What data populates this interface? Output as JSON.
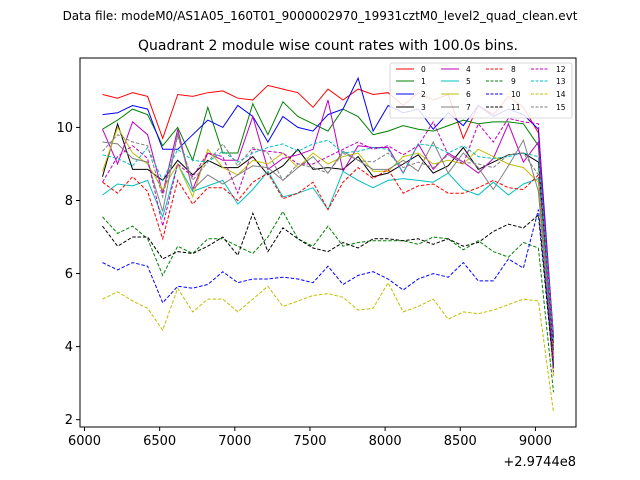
{
  "header": {
    "suptitle": "Data file: modeM0/AS1A05_160T01_9000002970_19931cztM0_level2_quad_clean.evt"
  },
  "chart_data": {
    "type": "line",
    "title": "Quadrant 2 module wise count rates with 100.0s bins.",
    "xlabel": "",
    "ylabel": "",
    "x_offset_label": "+2.9744e8",
    "xlim": [
      5970,
      9270
    ],
    "ylim": [
      1.8,
      11.9
    ],
    "xticks": [
      6000,
      6500,
      7000,
      7500,
      8000,
      8500,
      9000
    ],
    "yticks": [
      2,
      4,
      6,
      8,
      10
    ],
    "legend_position": "upper right",
    "x": [
      6120,
      6220,
      6320,
      6420,
      6520,
      6620,
      6720,
      6820,
      6920,
      7020,
      7120,
      7220,
      7320,
      7420,
      7520,
      7620,
      7720,
      7820,
      7920,
      8020,
      8120,
      8220,
      8320,
      8420,
      8520,
      8620,
      8720,
      8820,
      8920,
      9020,
      9120
    ],
    "series": [
      {
        "name": "0",
        "color": "#ff0000",
        "dash": "solid",
        "values": [
          10.9,
          10.8,
          10.95,
          10.85,
          9.7,
          10.9,
          10.85,
          10.95,
          11.0,
          10.8,
          10.75,
          11.15,
          11.05,
          10.95,
          10.55,
          11.05,
          10.75,
          11.05,
          10.9,
          10.95,
          10.6,
          10.95,
          10.75,
          10.9,
          9.7,
          10.6,
          10.35,
          10.85,
          10.55,
          9.85,
          4.1
        ]
      },
      {
        "name": "1",
        "color": "#008000",
        "dash": "solid",
        "values": [
          9.95,
          10.2,
          10.5,
          10.35,
          9.5,
          10.0,
          9.1,
          10.55,
          9.3,
          9.3,
          10.65,
          9.8,
          10.7,
          10.3,
          10.1,
          9.9,
          10.5,
          10.3,
          9.8,
          9.9,
          10.05,
          9.95,
          9.9,
          10.05,
          10.2,
          10.1,
          10.15,
          10.15,
          10.1,
          9.5,
          3.6
        ]
      },
      {
        "name": "2",
        "color": "#0000ff",
        "dash": "solid",
        "values": [
          10.35,
          10.4,
          10.6,
          10.5,
          9.4,
          9.4,
          9.8,
          10.2,
          10.0,
          10.6,
          10.3,
          9.6,
          10.3,
          10.0,
          9.9,
          10.35,
          10.5,
          11.35,
          9.9,
          10.6,
          10.4,
          10.5,
          9.95,
          10.4,
          10.05,
          10.6,
          10.3,
          10.5,
          10.35,
          9.95,
          4.25
        ]
      },
      {
        "name": "3",
        "color": "#000000",
        "dash": "solid",
        "values": [
          8.65,
          10.1,
          8.85,
          8.85,
          8.55,
          9.1,
          8.7,
          9.1,
          8.9,
          8.9,
          9.2,
          8.7,
          8.95,
          9.4,
          8.85,
          8.9,
          8.85,
          9.2,
          8.65,
          8.75,
          9.0,
          9.25,
          8.75,
          8.95,
          9.45,
          8.85,
          9.05,
          9.25,
          9.3,
          9.05,
          3.9
        ]
      },
      {
        "name": "4",
        "color": "#bf00bf",
        "dash": "solid",
        "values": [
          9.95,
          9.0,
          10.15,
          9.8,
          8.2,
          9.95,
          8.3,
          9.3,
          9.1,
          9.1,
          10.3,
          8.85,
          9.15,
          9.25,
          9.4,
          10.75,
          8.8,
          9.5,
          9.45,
          9.45,
          8.75,
          9.55,
          8.85,
          9.3,
          9.05,
          8.75,
          9.15,
          10.1,
          9.05,
          9.6,
          4.3
        ]
      },
      {
        "name": "5",
        "color": "#00bfbf",
        "dash": "solid",
        "values": [
          8.15,
          8.45,
          8.4,
          8.55,
          7.55,
          9.0,
          8.25,
          8.4,
          8.55,
          7.9,
          8.3,
          8.8,
          8.1,
          8.2,
          8.35,
          7.75,
          8.8,
          8.55,
          8.35,
          8.55,
          8.6,
          8.55,
          8.5,
          8.75,
          8.3,
          8.15,
          8.5,
          8.15,
          8.45,
          8.6,
          3.5
        ]
      },
      {
        "name": "6",
        "color": "#bfbf00",
        "dash": "solid",
        "values": [
          8.8,
          10.0,
          9.3,
          9.0,
          8.3,
          9.0,
          8.1,
          9.4,
          8.9,
          8.7,
          9.1,
          9.0,
          9.3,
          8.9,
          9.3,
          9.0,
          9.2,
          9.3,
          8.8,
          8.8,
          9.2,
          9.3,
          9.0,
          9.1,
          9.0,
          9.4,
          9.2,
          9.0,
          8.9,
          8.5,
          3.2
        ]
      },
      {
        "name": "7",
        "color": "#808080",
        "dash": "solid",
        "values": [
          9.6,
          9.55,
          9.15,
          9.05,
          7.7,
          9.85,
          8.3,
          8.7,
          8.45,
          8.7,
          8.95,
          8.9,
          8.55,
          8.9,
          9.2,
          8.75,
          9.35,
          9.1,
          8.85,
          8.85,
          9.1,
          8.8,
          9.6,
          8.75,
          9.3,
          8.9,
          8.3,
          8.95,
          9.65,
          8.25,
          3.4
        ]
      },
      {
        "name": "8",
        "color": "#ff0000",
        "dash": "dashed",
        "values": [
          8.5,
          8.2,
          8.65,
          8.25,
          6.95,
          8.55,
          7.9,
          8.35,
          8.35,
          8.0,
          8.5,
          8.75,
          8.05,
          8.2,
          8.5,
          7.75,
          8.5,
          8.9,
          8.6,
          8.85,
          8.2,
          8.4,
          8.45,
          8.2,
          8.2,
          8.35,
          8.55,
          8.35,
          8.3,
          8.7,
          3.7
        ]
      },
      {
        "name": "9",
        "color": "#008000",
        "dash": "dashed",
        "values": [
          7.55,
          7.1,
          7.3,
          6.95,
          5.95,
          6.75,
          6.55,
          6.95,
          6.95,
          6.75,
          6.55,
          7.0,
          7.7,
          6.95,
          6.75,
          7.3,
          6.75,
          6.85,
          6.9,
          6.9,
          6.9,
          6.8,
          7.0,
          6.95,
          6.65,
          6.9,
          6.6,
          6.45,
          6.85,
          6.7,
          2.75
        ]
      },
      {
        "name": "10",
        "color": "#0000ff",
        "dash": "dashed",
        "values": [
          6.3,
          6.1,
          6.3,
          6.2,
          5.2,
          5.65,
          5.6,
          5.7,
          6.05,
          5.75,
          5.85,
          5.85,
          5.9,
          5.85,
          5.75,
          6.2,
          5.7,
          5.95,
          6.05,
          5.85,
          5.55,
          5.85,
          6.0,
          5.9,
          6.3,
          5.8,
          5.8,
          6.4,
          6.15,
          7.75,
          3.5
        ]
      },
      {
        "name": "11",
        "color": "#000000",
        "dash": "dashed",
        "values": [
          7.3,
          6.75,
          7.0,
          7.0,
          6.4,
          6.6,
          6.55,
          6.75,
          7.0,
          6.5,
          7.65,
          6.6,
          7.25,
          6.95,
          6.7,
          6.6,
          6.85,
          6.7,
          6.95,
          6.95,
          6.9,
          6.95,
          6.8,
          6.95,
          6.75,
          6.85,
          7.15,
          7.35,
          7.25,
          7.6,
          3.4
        ]
      },
      {
        "name": "12",
        "color": "#bf00bf",
        "dash": "dashed",
        "values": [
          8.5,
          9.2,
          9.5,
          9.15,
          7.3,
          9.0,
          8.65,
          9.3,
          9.2,
          8.2,
          9.4,
          9.35,
          9.3,
          9.0,
          9.0,
          9.2,
          9.4,
          9.6,
          9.4,
          9.5,
          9.25,
          9.5,
          10.15,
          9.25,
          9.0,
          10.1,
          9.6,
          10.25,
          10.15,
          10.1,
          3.3
        ]
      },
      {
        "name": "13",
        "color": "#00bfbf",
        "dash": "dashed",
        "values": [
          9.25,
          9.15,
          8.95,
          9.45,
          8.55,
          9.4,
          9.1,
          9.05,
          9.35,
          9.05,
          9.3,
          9.45,
          9.55,
          9.35,
          9.55,
          9.65,
          9.3,
          9.35,
          9.45,
          9.4,
          8.75,
          9.55,
          9.5,
          9.3,
          9.5,
          9.2,
          9.15,
          9.2,
          9.3,
          9.2,
          4.15
        ]
      },
      {
        "name": "14",
        "color": "#bfbf00",
        "dash": "dashed",
        "values": [
          5.3,
          5.5,
          5.25,
          5.05,
          4.45,
          5.6,
          4.95,
          5.3,
          5.3,
          4.95,
          5.3,
          5.65,
          5.1,
          5.25,
          5.4,
          5.45,
          5.35,
          5.0,
          5.05,
          5.75,
          4.95,
          5.1,
          5.3,
          4.75,
          4.95,
          4.9,
          5.0,
          5.15,
          5.3,
          5.25,
          2.2
        ]
      },
      {
        "name": "15",
        "color": "#808080",
        "dash": "dashed",
        "values": [
          9.35,
          9.8,
          9.6,
          9.5,
          8.1,
          9.75,
          8.55,
          9.05,
          9.55,
          8.95,
          9.45,
          9.3,
          8.55,
          9.0,
          8.9,
          8.75,
          9.3,
          9.1,
          9.05,
          9.3,
          8.9,
          9.05,
          8.9,
          9.25,
          9.05,
          9.0,
          8.9,
          9.25,
          9.3,
          8.7,
          3.85
        ]
      }
    ]
  }
}
